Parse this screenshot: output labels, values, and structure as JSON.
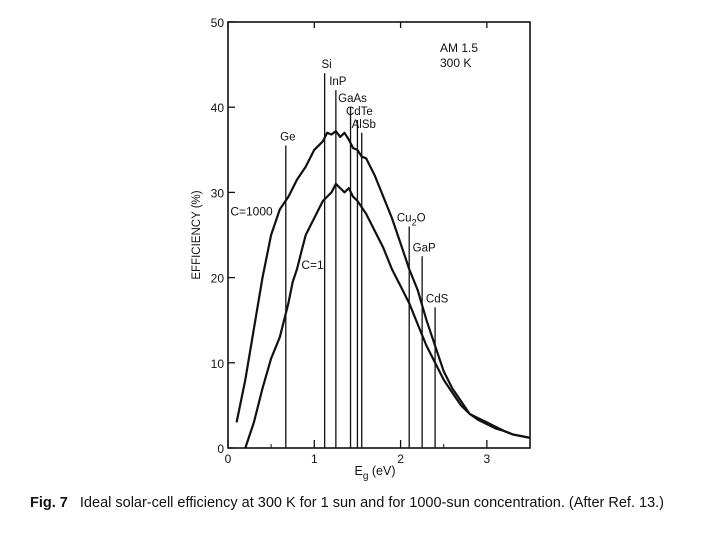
{
  "chart_data": {
    "type": "line",
    "conditions": [
      "AM 1.5",
      "300 K"
    ],
    "xlabel_main": "E",
    "xlabel_sub": "g",
    "xlabel_unit": " (eV)",
    "ylabel": "EFFICIENCY (%)",
    "xlim": [
      0,
      3.5
    ],
    "ylim": [
      0,
      50
    ],
    "xticks": [
      0,
      1,
      2,
      3
    ],
    "yticks": [
      0,
      10,
      20,
      30,
      40,
      50
    ],
    "series": [
      {
        "name": "C=1000",
        "values": [
          [
            0.1,
            3
          ],
          [
            0.2,
            8
          ],
          [
            0.3,
            14
          ],
          [
            0.4,
            20
          ],
          [
            0.5,
            25
          ],
          [
            0.6,
            28
          ],
          [
            0.7,
            29.5
          ],
          [
            0.8,
            31.5
          ],
          [
            0.9,
            33
          ],
          [
            1.0,
            35
          ],
          [
            1.1,
            36
          ],
          [
            1.15,
            37
          ],
          [
            1.2,
            36.8
          ],
          [
            1.25,
            37.2
          ],
          [
            1.3,
            36.5
          ],
          [
            1.35,
            37
          ],
          [
            1.4,
            36.2
          ],
          [
            1.45,
            35.2
          ],
          [
            1.5,
            35
          ],
          [
            1.55,
            34.2
          ],
          [
            1.6,
            34
          ],
          [
            1.7,
            32
          ],
          [
            1.8,
            29.5
          ],
          [
            1.9,
            27
          ],
          [
            2.0,
            24
          ],
          [
            2.1,
            21
          ],
          [
            2.2,
            18.5
          ],
          [
            2.3,
            15
          ],
          [
            2.4,
            12
          ],
          [
            2.5,
            9
          ],
          [
            2.6,
            7
          ],
          [
            2.7,
            5.5
          ],
          [
            2.8,
            4
          ],
          [
            2.9,
            3.5
          ],
          [
            3.0,
            3
          ],
          [
            3.1,
            2.5
          ],
          [
            3.2,
            2
          ],
          [
            3.3,
            1.6
          ],
          [
            3.5,
            1.2
          ]
        ]
      },
      {
        "name": "C=1",
        "values": [
          [
            0.2,
            0
          ],
          [
            0.3,
            3
          ],
          [
            0.4,
            7
          ],
          [
            0.5,
            10.5
          ],
          [
            0.6,
            13
          ],
          [
            0.7,
            17
          ],
          [
            0.75,
            19.5
          ],
          [
            0.8,
            21
          ],
          [
            0.85,
            23
          ],
          [
            0.9,
            25
          ],
          [
            1.0,
            27
          ],
          [
            1.1,
            29
          ],
          [
            1.2,
            30
          ],
          [
            1.25,
            31
          ],
          [
            1.3,
            30.5
          ],
          [
            1.35,
            30
          ],
          [
            1.4,
            30.5
          ],
          [
            1.45,
            29.5
          ],
          [
            1.5,
            29
          ],
          [
            1.6,
            27.5
          ],
          [
            1.7,
            25.5
          ],
          [
            1.8,
            23.5
          ],
          [
            1.9,
            21
          ],
          [
            2.0,
            19
          ],
          [
            2.1,
            17
          ],
          [
            2.2,
            14.5
          ],
          [
            2.3,
            12
          ],
          [
            2.4,
            10
          ],
          [
            2.5,
            8
          ],
          [
            2.6,
            6.5
          ],
          [
            2.7,
            5
          ],
          [
            2.8,
            4
          ],
          [
            2.9,
            3.3
          ],
          [
            3.0,
            2.8
          ],
          [
            3.1,
            2.3
          ],
          [
            3.2,
            2
          ],
          [
            3.3,
            1.6
          ],
          [
            3.5,
            1.2
          ]
        ]
      }
    ],
    "materials": [
      {
        "label": "Ge",
        "sub": "",
        "eg": 0.67,
        "top": 35.5
      },
      {
        "label": "Si",
        "sub": "",
        "eg": 1.12,
        "top": 44
      },
      {
        "label": "InP",
        "sub": "",
        "eg": 1.25,
        "top": 42
      },
      {
        "label": "GaAs",
        "sub": "",
        "eg": 1.42,
        "top": 40
      },
      {
        "label": "CdTe",
        "sub": "",
        "eg": 1.5,
        "top": 38.5
      },
      {
        "label": "AlSb",
        "sub": "",
        "eg": 1.55,
        "top": 37
      },
      {
        "label": "Cu",
        "sub": "2",
        "tail": "O",
        "eg": 2.1,
        "top": 26
      },
      {
        "label": "GaP",
        "sub": "",
        "eg": 2.25,
        "top": 22.5
      },
      {
        "label": "CdS",
        "sub": "",
        "eg": 2.4,
        "top": 16.5
      }
    ]
  },
  "caption": {
    "fig": "Fig. 7",
    "text": "Ideal solar-cell efficiency at 300 K for 1 sun and for 1000-sun concentration. (After Ref. 13.)"
  }
}
